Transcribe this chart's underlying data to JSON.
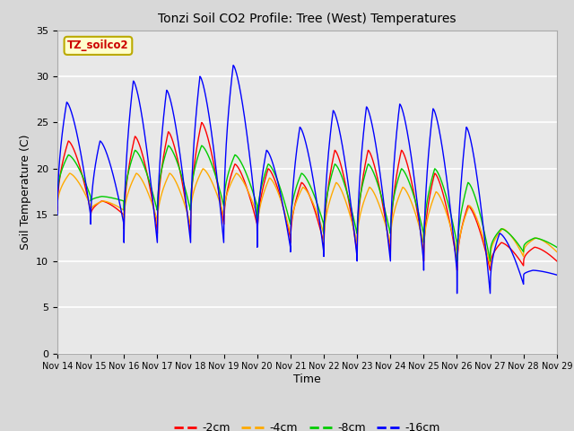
{
  "title": "Tonzi Soil CO2 Profile: Tree (West) Temperatures",
  "xlabel": "Time",
  "ylabel": "Soil Temperature (C)",
  "legend_label": "TZ_soilco2",
  "series_labels": [
    "-2cm",
    "-4cm",
    "-8cm",
    "-16cm"
  ],
  "series_colors": [
    "#ff0000",
    "#ffaa00",
    "#00cc00",
    "#0000ff"
  ],
  "ylim": [
    0,
    35
  ],
  "background_color": "#e0e0e0",
  "tick_labels": [
    "Nov 14",
    "Nov 15",
    "Nov 16",
    "Nov 17",
    "Nov 18",
    "Nov 19",
    "Nov 20",
    "Nov 21",
    "Nov 22",
    "Nov 23",
    "Nov 24",
    "Nov 25",
    "Nov 26",
    "Nov 27",
    "Nov 28",
    "Nov 29"
  ],
  "yticks": [
    0,
    5,
    10,
    15,
    20,
    25,
    30,
    35
  ],
  "blue_peaks": [
    27.2,
    23.0,
    29.5,
    28.5,
    30.0,
    31.2,
    22.0,
    24.5,
    26.3,
    26.7,
    27.0,
    26.5,
    24.5,
    13.0,
    9.0
  ],
  "blue_troughs": [
    15.0,
    14.0,
    12.0,
    12.0,
    12.0,
    14.0,
    11.5,
    11.0,
    10.5,
    10.0,
    10.0,
    9.0,
    6.5,
    7.5,
    8.5
  ],
  "red_peaks": [
    23.0,
    16.5,
    23.5,
    24.0,
    25.0,
    20.5,
    20.0,
    18.5,
    22.0,
    22.0,
    22.0,
    19.5,
    16.0,
    12.0,
    11.5
  ],
  "red_troughs": [
    15.5,
    15.0,
    13.5,
    13.0,
    14.0,
    14.0,
    12.5,
    12.0,
    11.0,
    11.0,
    11.0,
    10.0,
    9.0,
    9.5,
    10.0
  ],
  "orange_peaks": [
    19.5,
    16.5,
    19.5,
    19.5,
    20.0,
    19.5,
    19.0,
    18.0,
    18.5,
    18.0,
    18.0,
    17.5,
    16.0,
    13.5,
    12.5
  ],
  "orange_troughs": [
    16.0,
    15.5,
    14.5,
    14.0,
    15.0,
    15.0,
    13.0,
    13.0,
    12.0,
    12.0,
    12.0,
    11.0,
    9.5,
    10.5,
    11.0
  ],
  "green_peaks": [
    21.5,
    17.0,
    22.0,
    22.5,
    22.5,
    21.5,
    20.5,
    19.5,
    20.5,
    20.5,
    20.0,
    20.0,
    18.5,
    13.5,
    12.5
  ],
  "green_troughs": [
    17.0,
    16.5,
    15.5,
    15.5,
    16.0,
    16.0,
    14.0,
    14.0,
    13.0,
    13.0,
    13.0,
    12.0,
    10.0,
    11.0,
    11.5
  ],
  "n_days": 15,
  "pts_per_day": 200
}
